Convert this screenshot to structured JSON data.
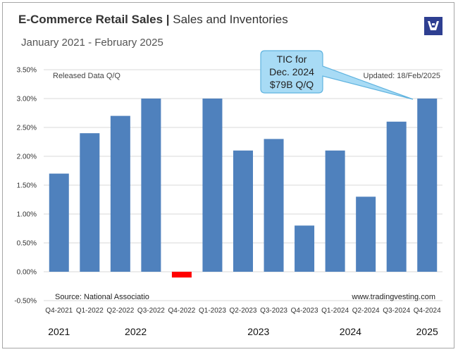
{
  "header": {
    "title_main": "E-Commerce Retail Sales |",
    "title_sub": "Sales and Inventories",
    "subtitle": "January 2021 - February 2025"
  },
  "notes": {
    "released": "Released Data Q/Q",
    "updated": "Updated: 18/Feb/2025",
    "source": "Source: National Associatio",
    "website": "www.tradingvesting.com"
  },
  "callout": {
    "line1": "TIC for",
    "line2": "Dec. 2024",
    "line3": "$79B Q/Q"
  },
  "logo_icon": "tradingvesting-logo-icon",
  "colors": {
    "bar": "#4f81bd",
    "negative_bar": "#ff0000",
    "callout_fill": "#a8dbf5",
    "callout_border": "#5fb3df",
    "logo_bg": "#2e3f91"
  },
  "chart_data": {
    "type": "bar",
    "categories": [
      "Q4-2021",
      "Q1-2022",
      "Q2-2022",
      "Q3-2022",
      "Q4-2022",
      "Q1-2023",
      "Q2-2023",
      "Q3-2023",
      "Q4-2023",
      "Q1-2024",
      "Q2-2024",
      "Q3-2024",
      "Q4-2024"
    ],
    "values": [
      1.7,
      2.4,
      2.7,
      3.0,
      -0.1,
      3.0,
      2.1,
      2.3,
      0.8,
      2.1,
      1.3,
      2.6,
      3.0
    ],
    "ylim": [
      -0.5,
      3.5
    ],
    "y_ticks": [
      "3.50%",
      "3.00%",
      "2.50%",
      "2.00%",
      "1.50%",
      "1.00%",
      "0.50%",
      "0.00%",
      "-0.50%"
    ],
    "years": [
      {
        "label": "2021",
        "index": 0
      },
      {
        "label": "2022",
        "index": 2.5
      },
      {
        "label": "2023",
        "index": 6.5
      },
      {
        "label": "2024",
        "index": 9.5
      },
      {
        "label": "2025",
        "index": 12
      }
    ],
    "grid": true,
    "legend": "none"
  }
}
